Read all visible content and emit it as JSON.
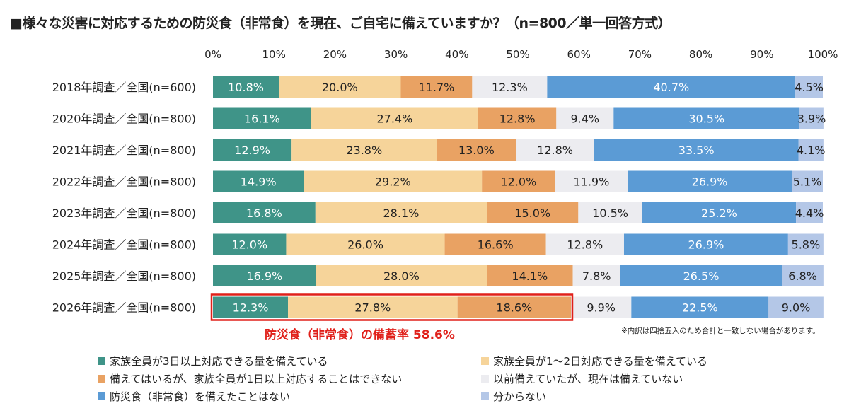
{
  "chart_data": {
    "type": "bar",
    "orientation": "horizontal",
    "stacked": true,
    "title": "■様々な災害に対応するための防災食（非常食）を現在、ご自宅に備えていますか？（n=800／単一回答方式）",
    "categories": [
      "2018年調査／全国(n=600)",
      "2020年調査／全国(n=800)",
      "2021年調査／全国(n=800)",
      "2022年調査／全国(n=800)",
      "2023年調査／全国(n=800)",
      "2024年調査／全国(n=800)",
      "2025年調査／全国(n=800)",
      "2026年調査／全国(n=800)"
    ],
    "xlim": [
      0,
      100
    ],
    "xticks": [
      "0%",
      "10%",
      "20%",
      "30%",
      "40%",
      "50%",
      "60%",
      "70%",
      "80%",
      "90%",
      "100%"
    ],
    "grid": false,
    "legend_position": "bottom",
    "series": [
      {
        "name": "家族全員が3日以上対応できる量を備えている",
        "color": "#3f9488",
        "label_color": "#ffffff",
        "values": [
          10.8,
          16.1,
          12.9,
          14.9,
          16.8,
          12.0,
          16.9,
          12.3
        ]
      },
      {
        "name": "家族全員が1～2日対応できる量を備えている",
        "color": "#f6d49a",
        "label_color": "#222222",
        "values": [
          20.0,
          27.4,
          23.8,
          29.2,
          28.1,
          26.0,
          28.0,
          27.8
        ]
      },
      {
        "name": "備えてはいるが、家族全員が1日以上対応することはできない",
        "color": "#e9a263",
        "label_color": "#222222",
        "values": [
          11.7,
          12.8,
          13.0,
          12.0,
          15.0,
          16.6,
          14.1,
          18.6
        ]
      },
      {
        "name": "以前備えていたが、現在は備えていない",
        "color": "#ececf0",
        "label_color": "#222222",
        "values": [
          12.3,
          9.4,
          12.8,
          11.9,
          10.5,
          12.8,
          7.8,
          9.9
        ]
      },
      {
        "name": "防災食（非常食）を備えたことはない",
        "color": "#5b9bd5",
        "label_color": "#ffffff",
        "values": [
          40.7,
          30.5,
          33.5,
          26.9,
          25.2,
          26.9,
          26.5,
          22.5
        ]
      },
      {
        "name": "分からない",
        "color": "#b4c7e7",
        "label_color": "#222222",
        "values": [
          4.5,
          3.9,
          4.1,
          5.1,
          4.4,
          5.8,
          6.8,
          9.0
        ]
      }
    ],
    "highlight": {
      "category_index": 7,
      "series_count": 3,
      "color": "#e0201a",
      "text": "防災食（非常食）の備蓄率 58.6%"
    },
    "note": "※内訳は四捨五入のため合計と一致しない場合があります。"
  }
}
